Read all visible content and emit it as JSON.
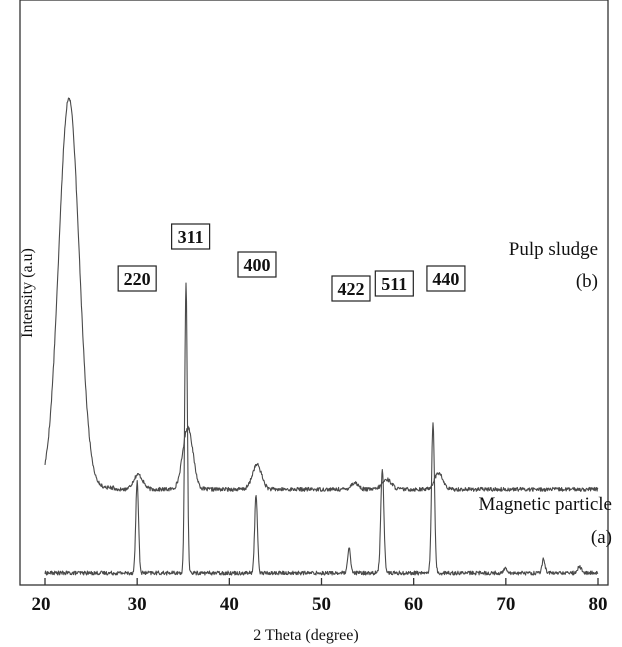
{
  "chart_data": {
    "type": "line",
    "xlabel": "2 Theta (degree)",
    "ylabel": "Intensity (a.u)",
    "xlim": [
      20,
      80
    ],
    "x_ticks": [
      "20",
      "30",
      "40",
      "50",
      "60",
      "70",
      "80"
    ],
    "y_ticks_shown": false,
    "grid": false,
    "series": [
      {
        "name": "Pulp sludge",
        "tag": "(b)",
        "baseline": 0.51,
        "noise": 0.012,
        "x_range": [
          27.5,
          80
        ],
        "x_start": 20,
        "start_level": 0.52,
        "peaks": [
          {
            "x": 22.6,
            "height": 2.38,
            "width": 1.1
          },
          {
            "x": 30.1,
            "height": 0.09,
            "width": 0.5
          },
          {
            "x": 35.5,
            "height": 0.38,
            "width": 0.55
          },
          {
            "x": 43.0,
            "height": 0.15,
            "width": 0.5
          },
          {
            "x": 53.6,
            "height": 0.04,
            "width": 0.4
          },
          {
            "x": 57.1,
            "height": 0.06,
            "width": 0.5
          },
          {
            "x": 62.7,
            "height": 0.1,
            "width": 0.45
          }
        ]
      },
      {
        "name": "Magnetic particle",
        "tag": "(a)",
        "baseline": 0.0,
        "noise": 0.012,
        "x_range": [
          20,
          80
        ],
        "peaks": [
          {
            "x": 30.0,
            "height": 0.56,
            "width": 0.15
          },
          {
            "x": 35.3,
            "height": 1.76,
            "width": 0.14
          },
          {
            "x": 42.9,
            "height": 0.48,
            "width": 0.15
          },
          {
            "x": 53.0,
            "height": 0.15,
            "width": 0.15
          },
          {
            "x": 56.6,
            "height": 0.63,
            "width": 0.17
          },
          {
            "x": 62.1,
            "height": 0.92,
            "width": 0.16
          },
          {
            "x": 70.0,
            "height": 0.03,
            "width": 0.2
          },
          {
            "x": 74.1,
            "height": 0.09,
            "width": 0.15
          },
          {
            "x": 78.0,
            "height": 0.04,
            "width": 0.2
          }
        ]
      }
    ],
    "peak_labels": [
      {
        "text": "220",
        "x": 30.0
      },
      {
        "text": "311",
        "x": 35.8
      },
      {
        "text": "400",
        "x": 43.0
      },
      {
        "text": "422",
        "x": 53.2
      },
      {
        "text": "511",
        "x": 57.9
      },
      {
        "text": "440",
        "x": 63.5
      }
    ],
    "line_color": "#4a4a4a"
  }
}
